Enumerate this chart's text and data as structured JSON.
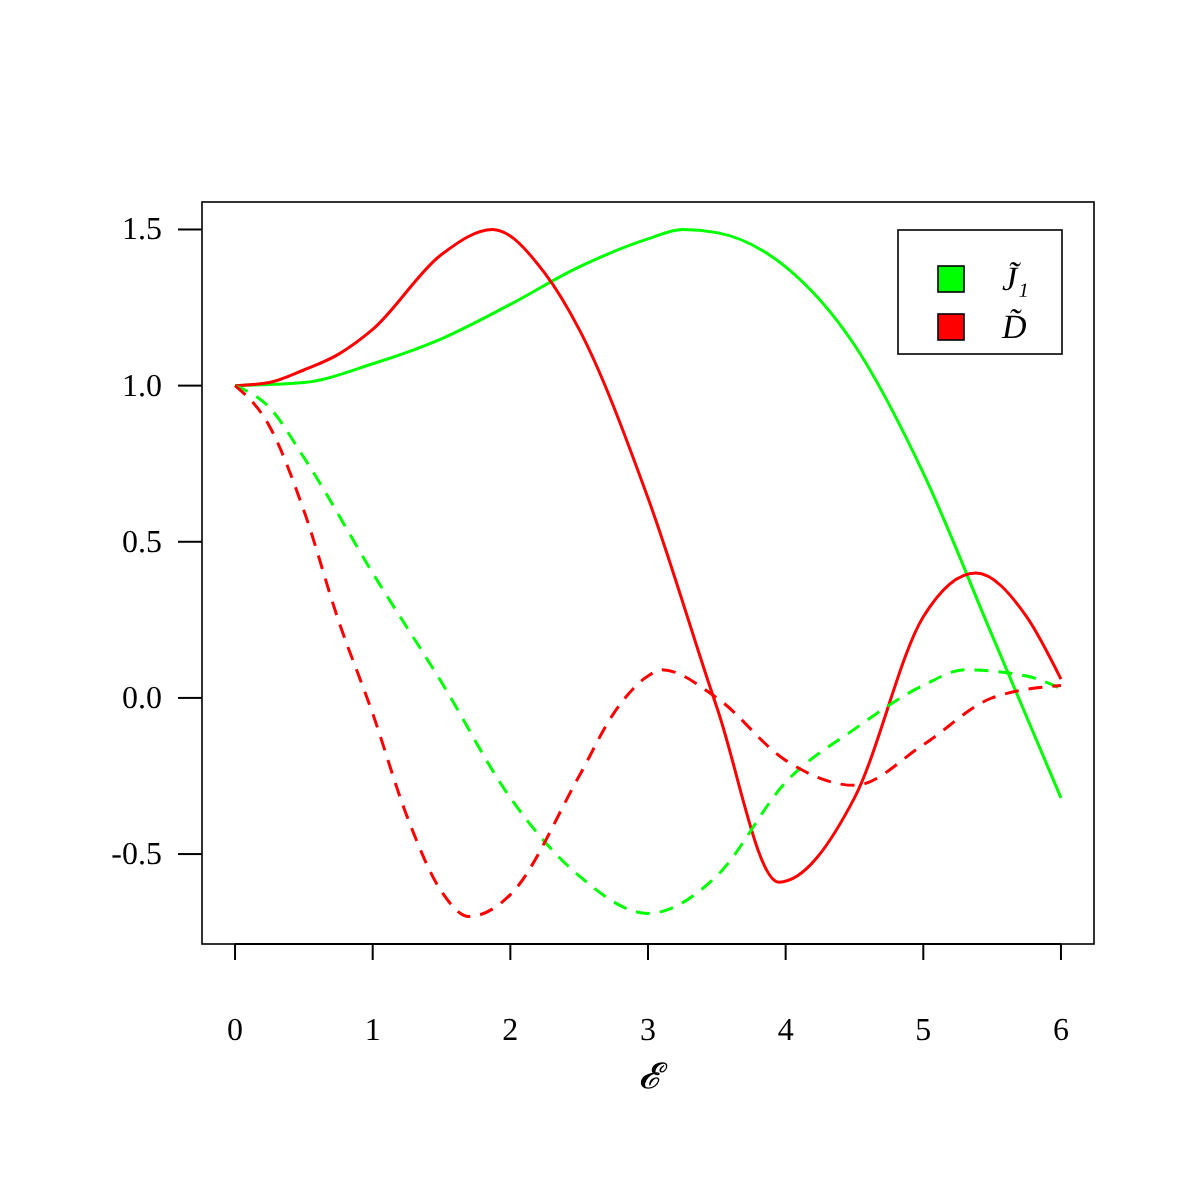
{
  "chart_data": {
    "type": "line",
    "xlabel": "𝓔",
    "xlim": [
      -0.24,
      6.24
    ],
    "ylim": [
      -0.788,
      1.588
    ],
    "xticks": [
      0,
      1,
      2,
      3,
      4,
      5,
      6
    ],
    "yticks": [
      {
        "value": -0.5,
        "label": "-0.5"
      },
      {
        "value": 0,
        "label": "0.0"
      },
      {
        "value": 0.5,
        "label": "0.5"
      },
      {
        "value": 1,
        "label": "1.0"
      },
      {
        "value": 1.5,
        "label": "1.5"
      }
    ],
    "grid": false,
    "legend": "top right",
    "series": [
      {
        "name": "J̃₁",
        "color": "#00ff00",
        "line_style": "solid",
        "x": [
          0,
          0.5,
          1,
          1.5,
          2,
          2.5,
          3,
          3.25,
          3.5,
          4,
          4.5,
          5,
          5.5,
          6
        ],
        "values": [
          1,
          1.01,
          1.07,
          1.15,
          1.26,
          1.38,
          1.47,
          1.5,
          1.49,
          1.38,
          1.13,
          0.72,
          0.2,
          -0.32
        ]
      },
      {
        "name": "D̃",
        "color": "#ff0000",
        "line_style": "solid",
        "x": [
          0,
          0.25,
          0.5,
          0.75,
          1,
          1.5,
          1.87,
          2.25,
          2.5,
          3,
          3.5,
          3.95,
          4.5,
          5,
          5.38,
          5.75,
          6
        ],
        "values": [
          1,
          1.01,
          1.05,
          1.1,
          1.18,
          1.42,
          1.5,
          1.36,
          1.18,
          0.64,
          -0.03,
          -0.59,
          -0.32,
          0.26,
          0.4,
          0.26,
          0.06
        ]
      },
      {
        "color": "#00ff00",
        "line_style": "dashed",
        "x": [
          0,
          0.25,
          0.5,
          1,
          1.5,
          2,
          2.5,
          3,
          3.5,
          4,
          4.5,
          5,
          5.3,
          5.75,
          6
        ],
        "values": [
          1,
          0.93,
          0.77,
          0.4,
          0.05,
          -0.32,
          -0.57,
          -0.69,
          -0.57,
          -0.27,
          -0.1,
          0.04,
          0.09,
          0.07,
          0.03
        ]
      },
      {
        "color": "#ff0000",
        "line_style": "dashed",
        "x": [
          0,
          0.25,
          0.5,
          0.75,
          1,
          1.25,
          1.5,
          1.7,
          2,
          2.5,
          2.75,
          3,
          3.1,
          3.5,
          4,
          4.5,
          5,
          5.5,
          6
        ],
        "values": [
          1,
          0.87,
          0.6,
          0.25,
          -0.05,
          -0.38,
          -0.62,
          -0.7,
          -0.63,
          -0.25,
          -0.05,
          0.07,
          0.09,
          0,
          -0.2,
          -0.28,
          -0.15,
          0,
          0.04
        ]
      }
    ]
  }
}
